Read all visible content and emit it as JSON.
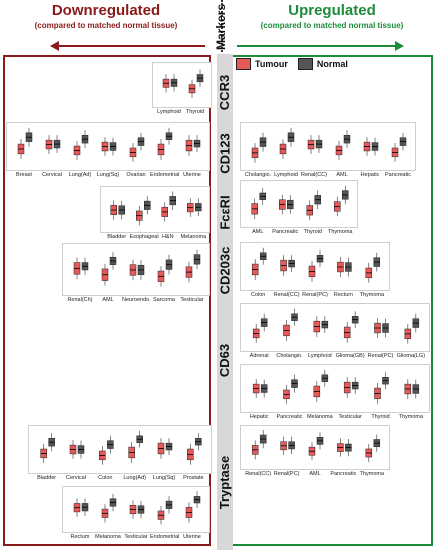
{
  "header": {
    "down_title": "Downregulated",
    "down_sub": "(compared to matched normal tissue)",
    "up_title": "Upregulated",
    "up_sub": "(compared to matched normal tissue)",
    "markers": "Markers"
  },
  "legend": {
    "tumour": "Tumour",
    "normal": "Normal",
    "tumour_color": "#e85a5a",
    "normal_color": "#555555"
  },
  "markers": [
    "CCR3",
    "CD123",
    "FcεRI",
    "CD203c",
    "CD63",
    "Tryptase"
  ],
  "groups": {
    "ccr3_down": [
      "Lymphoid",
      "Thyroid"
    ],
    "cd123_down": [
      "Breast",
      "Cervical",
      "Lung(Ad)",
      "Lung(Sq)",
      "Ovarian",
      "Endometrial",
      "Uterine"
    ],
    "cd123_up": [
      "Cholangio.",
      "Lymphoid",
      "Renal(CC)",
      "AML",
      "Hepatic",
      "Pancreatic"
    ],
    "fceri_down": [
      "Bladder",
      "Esophageal",
      "H&N",
      "Melanoma"
    ],
    "fceri_up": [
      "AML",
      "Pancreatic",
      "Thyroid",
      "Thymoma"
    ],
    "cd203c_down": [
      "Renal(Ch)",
      "AML",
      "Neuroendo.",
      "Sarcoma",
      "Testicular"
    ],
    "cd203c_up": [
      "Colon",
      "Renal(CC)",
      "Renal(PC)",
      "Rectum",
      "Thymoma"
    ],
    "cd63_up1": [
      "Adrenal",
      "Cholangio.",
      "Lymphoid",
      "Glioma(GB)",
      "Renal(PC)",
      "Glioma(LG)"
    ],
    "cd63_up2": [
      "Hepatic",
      "Pancreatic",
      "Melanoma",
      "Testicular",
      "Thyroid",
      "Thymoma"
    ],
    "tryptase_down1": [
      "Bladder",
      "Cervical",
      "Colon",
      "Lung(Ad)",
      "Lung(Sq)",
      "Prostate"
    ],
    "tryptase_down2": [
      "Rectum",
      "Melanoma",
      "Testicular",
      "Endometrial",
      "Uterine"
    ],
    "tryptase_up": [
      "Renal(CC)",
      "Renal(PC)",
      "AML",
      "Pancreatic",
      "Thymoma"
    ]
  }
}
